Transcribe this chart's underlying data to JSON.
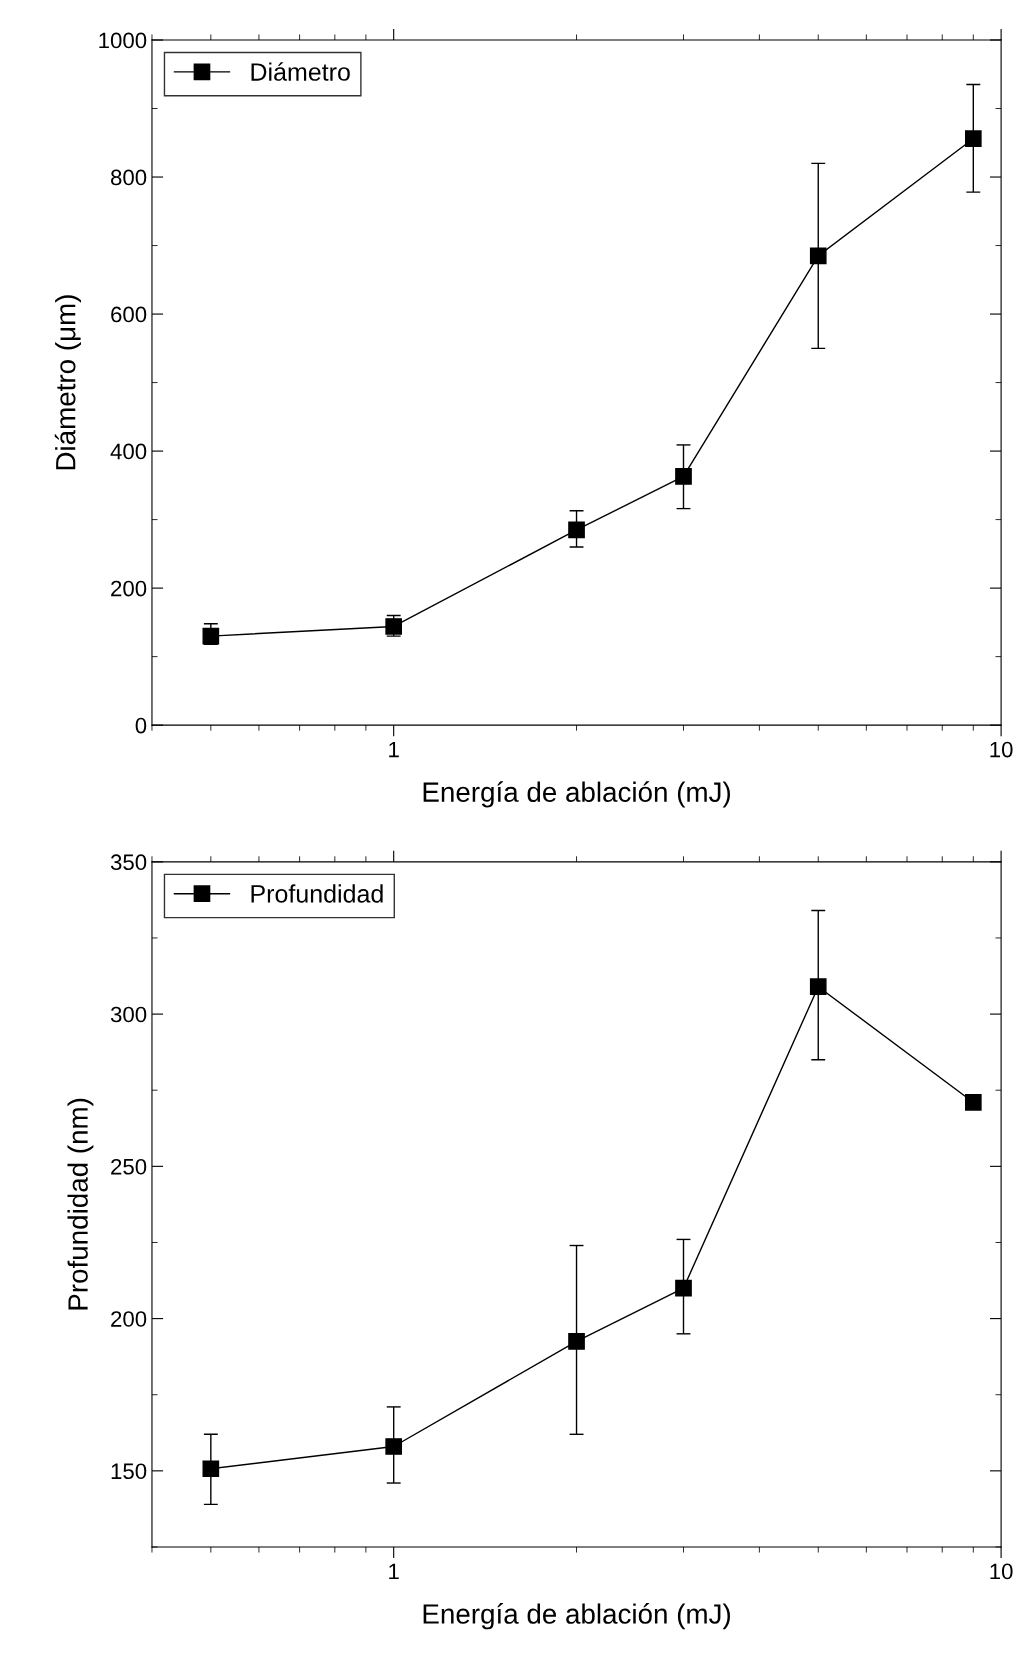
{
  "chart_data": [
    {
      "type": "line",
      "x": [
        0.5,
        1,
        2,
        3,
        5,
        9
      ],
      "xlabel": "Energía de ablación (mJ)",
      "ylabel": "Diámetro (μm)",
      "log": "x",
      "xlim": [
        0.4,
        10
      ],
      "xticks": [
        1,
        10
      ],
      "ylim": [
        0,
        1000
      ],
      "yticks": [
        0,
        200,
        400,
        600,
        800,
        1000
      ],
      "grid": false,
      "legend": "top left",
      "marker": "square",
      "line_style": "solid",
      "series": [
        {
          "name": "Diámetro",
          "color": "#000000",
          "values": [
            130,
            144,
            285,
            363,
            685,
            856
          ],
          "errors": [
            [
              118,
              148
            ],
            [
              130,
              160
            ],
            [
              260,
              313
            ],
            [
              316,
              409
            ],
            [
              550,
              820
            ],
            [
              778,
              935
            ]
          ]
        }
      ]
    },
    {
      "type": "line",
      "x": [
        0.5,
        1,
        2,
        3,
        5,
        9
      ],
      "xlabel": "Energía de ablación (mJ)",
      "ylabel": "Profundidad (nm)",
      "log": "x",
      "xlim": [
        0.4,
        10
      ],
      "xticks": [
        1,
        10
      ],
      "ylim": [
        125,
        350
      ],
      "yticks": [
        150,
        200,
        250,
        300,
        350
      ],
      "grid": false,
      "legend": "top left",
      "marker": "square",
      "line_style": "solid",
      "series": [
        {
          "name": "Profundidad",
          "color": "#000000",
          "values": [
            150.7,
            158,
            192.5,
            210,
            309,
            271
          ],
          "errors": [
            [
              139,
              162
            ],
            [
              146,
              171
            ],
            [
              162,
              224
            ],
            [
              195,
              226
            ],
            [
              285,
              334
            ],
            null
          ]
        }
      ]
    }
  ]
}
